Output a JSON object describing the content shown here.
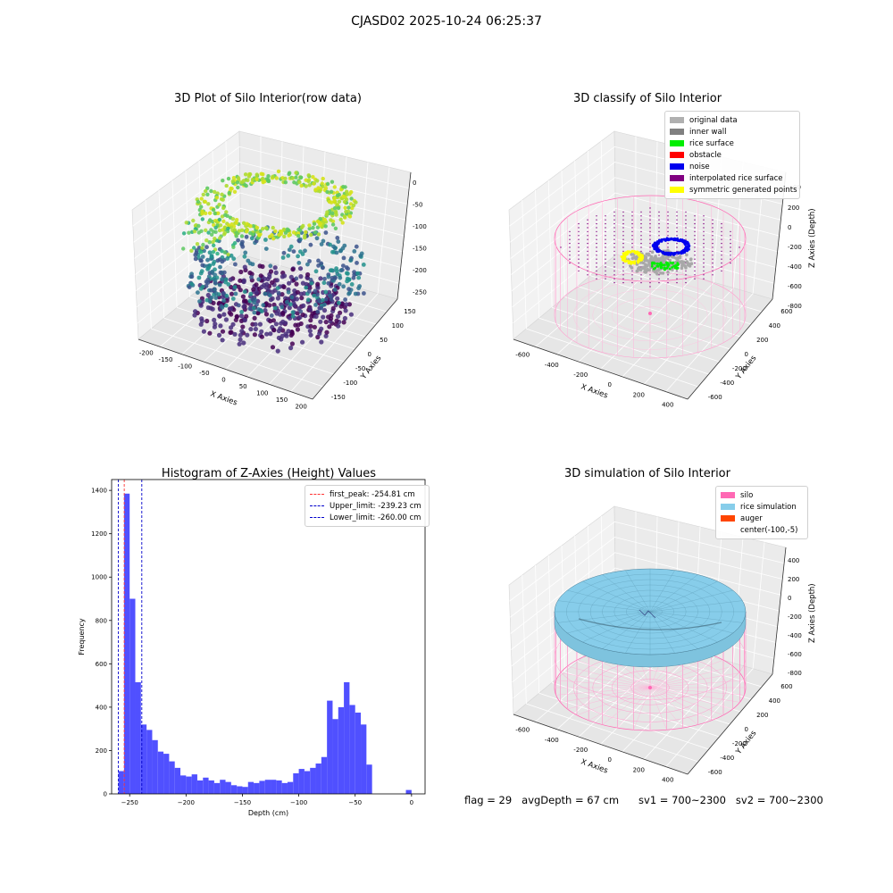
{
  "figure_title": "CJASD02 2025-10-24 06:25:37",
  "status": {
    "flag": "flag = 29",
    "avg_depth": "avgDepth = 67 cm",
    "sv1": "sv1 = 700~2300",
    "sv2": "sv2 = 700~2300"
  },
  "colors": {
    "histogram_bar": "#5050ff",
    "first_peak_line": "#ff3333",
    "limit_line": "#0000cc",
    "silo_wire": "#ff69b4",
    "rice_surface": "#87cdea",
    "auger": "#ff4500"
  },
  "chart_data": [
    {
      "type": "scatter",
      "subtype": "3d-scatter",
      "title": "3D Plot of Silo Interior(row data)",
      "xlabel": "X Axies",
      "ylabel": "Y Axies",
      "zlabel": "Z Axies (Depth)",
      "x_ticks": [
        "-200",
        "-150",
        "-100",
        "-50",
        "0",
        "50",
        "100",
        "150",
        "200"
      ],
      "y_ticks": [
        "-150",
        "-100",
        "-50",
        "0",
        "50",
        "100",
        "150"
      ],
      "z_ticks": [
        "0",
        "-50",
        "-100",
        "-150",
        "-200",
        "-250"
      ],
      "xlim": [
        -200,
        200
      ],
      "ylim": [
        -150,
        150
      ],
      "zlim": [
        -260,
        0
      ],
      "colormap": "viridis"
    },
    {
      "type": "scatter",
      "subtype": "3d-classification",
      "title": "3D classify of Silo Interior",
      "xlabel": "X Axies",
      "ylabel": "Y Axies",
      "zlabel": "Z Axies (Depth)",
      "x_ticks": [
        "-600",
        "-400",
        "-200",
        "0",
        "200",
        "400"
      ],
      "y_ticks": [
        "-600",
        "-400",
        "-200",
        "0",
        "200",
        "400",
        "600"
      ],
      "z_ticks": [
        "200",
        "0",
        "-200",
        "-400",
        "-600",
        "-800"
      ],
      "z_tick_partial": "00",
      "legend": [
        {
          "label": "original data",
          "color": "#b0b0b0"
        },
        {
          "label": "inner wall",
          "color": "#808080"
        },
        {
          "label": "rice surface",
          "color": "#00ee00"
        },
        {
          "label": "obstacle",
          "color": "#ff0000"
        },
        {
          "label": "noise",
          "color": "#0000ee"
        },
        {
          "label": "interpolated rice surface",
          "color": "#800080"
        },
        {
          "label": "symmetric generated points",
          "color": "#ffff00"
        }
      ]
    },
    {
      "type": "bar",
      "subtype": "histogram",
      "title": "Histogram of Z-Axies (Height) Values",
      "xlabel": "Depth (cm)",
      "ylabel": "Frequency",
      "xlim": [
        -266,
        12
      ],
      "ylim": [
        0,
        1450
      ],
      "x_ticks": [
        -250,
        -200,
        -150,
        -100,
        -50,
        0
      ],
      "y_ticks": [
        0,
        200,
        400,
        600,
        800,
        1000,
        1200,
        1400
      ],
      "bin_width": 5,
      "bins": [
        {
          "x": -260,
          "value": 105
        },
        {
          "x": -255,
          "value": 1385
        },
        {
          "x": -250,
          "value": 900
        },
        {
          "x": -245,
          "value": 515
        },
        {
          "x": -240,
          "value": 320
        },
        {
          "x": -235,
          "value": 295
        },
        {
          "x": -230,
          "value": 248
        },
        {
          "x": -225,
          "value": 195
        },
        {
          "x": -220,
          "value": 185
        },
        {
          "x": -215,
          "value": 150
        },
        {
          "x": -210,
          "value": 120
        },
        {
          "x": -205,
          "value": 85
        },
        {
          "x": -200,
          "value": 80
        },
        {
          "x": -195,
          "value": 90
        },
        {
          "x": -190,
          "value": 62
        },
        {
          "x": -185,
          "value": 75
        },
        {
          "x": -180,
          "value": 62
        },
        {
          "x": -175,
          "value": 50
        },
        {
          "x": -170,
          "value": 65
        },
        {
          "x": -165,
          "value": 55
        },
        {
          "x": -160,
          "value": 40
        },
        {
          "x": -155,
          "value": 35
        },
        {
          "x": -150,
          "value": 32
        },
        {
          "x": -145,
          "value": 55
        },
        {
          "x": -140,
          "value": 50
        },
        {
          "x": -135,
          "value": 60
        },
        {
          "x": -130,
          "value": 65
        },
        {
          "x": -125,
          "value": 65
        },
        {
          "x": -120,
          "value": 62
        },
        {
          "x": -115,
          "value": 50
        },
        {
          "x": -110,
          "value": 55
        },
        {
          "x": -105,
          "value": 95
        },
        {
          "x": -100,
          "value": 115
        },
        {
          "x": -95,
          "value": 105
        },
        {
          "x": -90,
          "value": 120
        },
        {
          "x": -85,
          "value": 140
        },
        {
          "x": -80,
          "value": 170
        },
        {
          "x": -75,
          "value": 430
        },
        {
          "x": -70,
          "value": 345
        },
        {
          "x": -65,
          "value": 400
        },
        {
          "x": -60,
          "value": 515
        },
        {
          "x": -55,
          "value": 410
        },
        {
          "x": -50,
          "value": 375
        },
        {
          "x": -45,
          "value": 320
        },
        {
          "x": -40,
          "value": 135
        },
        {
          "x": -35,
          "value": 0
        },
        {
          "x": -30,
          "value": 0
        },
        {
          "x": -25,
          "value": 0
        },
        {
          "x": -20,
          "value": 0
        },
        {
          "x": -15,
          "value": 0
        },
        {
          "x": -10,
          "value": 0
        },
        {
          "x": -5,
          "value": 18
        }
      ],
      "lines": [
        {
          "label": "first_peak: -254.81 cm",
          "x": -254.81,
          "color": "#ff3333"
        },
        {
          "label": "Upper_limit: -239.23 cm",
          "x": -239.23,
          "color": "#0000cc"
        },
        {
          "label": "Lower_limit: -260.00 cm",
          "x": -260.0,
          "color": "#0000cc"
        }
      ],
      "legend_position": "top-right"
    },
    {
      "type": "area",
      "subtype": "3d-surface",
      "title": "3D simulation of Silo Interior",
      "xlabel": "X Axies",
      "ylabel": "Y Axies",
      "zlabel": "Z Axies (Depth)",
      "x_ticks": [
        "-600",
        "-400",
        "-200",
        "0",
        "200",
        "400"
      ],
      "y_ticks": [
        "-600",
        "-400",
        "-200",
        "0",
        "200",
        "400",
        "600"
      ],
      "z_ticks": [
        "400",
        "200",
        "0",
        "-200",
        "-400",
        "-600",
        "-800"
      ],
      "legend": [
        {
          "label": "silo",
          "color": "#ff69b4"
        },
        {
          "label": "rice simulation",
          "color": "#87cdea"
        },
        {
          "label": "auger",
          "color": "#ff4500"
        },
        {
          "label": "center(-100,-5)",
          "color": ""
        }
      ]
    }
  ]
}
